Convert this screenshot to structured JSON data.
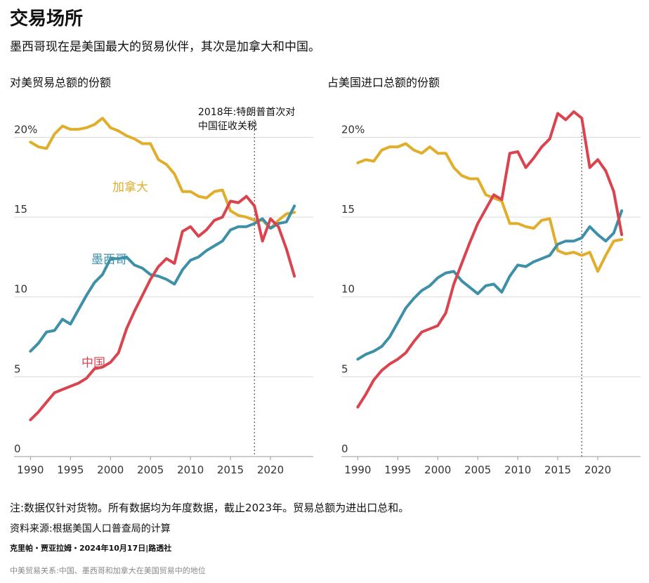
{
  "title": "交易场所",
  "subtitle": "墨西哥现在是美国最大的贸易伙伴，其次是加拿大和中国。",
  "note": "注:数据仅针对货物。所有数据均为年度数据，截止2023年。贸易总额为进出口总和。",
  "source": "资料来源:根据美国人口普查局的计算",
  "credit": "克里帕・贾亚拉姆・2024年10月17日|路透社",
  "caption": "中美贸易关系:中国、墨西哥和加拿大在美国贸易中的地位",
  "colors": {
    "canada": "#e0ae2a",
    "mexico": "#3e90a8",
    "china": "#d9444f",
    "grid": "#d9d9d9",
    "axis": "#999999"
  },
  "chart_data": [
    {
      "type": "line",
      "title": "对美贸易总额的份额",
      "annotation": "2018年:特朗普首次对中国征收关税",
      "annotation_year": 2018,
      "x_ticks": [
        "1990",
        "1995",
        "2000",
        "2005",
        "2010",
        "2015",
        "2020"
      ],
      "y_ticks": [
        "0",
        "5",
        "10",
        "15",
        "20%"
      ],
      "ylim": [
        0,
        22
      ],
      "xlim": [
        1989,
        2025
      ],
      "x": [
        1990,
        1991,
        1992,
        1993,
        1994,
        1995,
        1996,
        1997,
        1998,
        1999,
        2000,
        2001,
        2002,
        2003,
        2004,
        2005,
        2006,
        2007,
        2008,
        2009,
        2010,
        2011,
        2012,
        2013,
        2014,
        2015,
        2016,
        2017,
        2018,
        2019,
        2020,
        2021,
        2022,
        2023
      ],
      "series": [
        {
          "name": "加拿大",
          "key": "canada",
          "values": [
            19.7,
            19.4,
            19.3,
            20.2,
            20.7,
            20.5,
            20.5,
            20.6,
            20.8,
            21.2,
            20.6,
            20.4,
            20.1,
            19.9,
            19.6,
            19.6,
            18.6,
            18.3,
            17.7,
            16.6,
            16.6,
            16.3,
            16.2,
            16.6,
            16.7,
            15.4,
            15.1,
            15.0,
            14.8,
            14.8,
            14.3,
            14.8,
            15.2,
            15.3
          ]
        },
        {
          "name": "墨西哥",
          "key": "mexico",
          "values": [
            6.6,
            7.1,
            7.8,
            7.9,
            8.6,
            8.3,
            9.2,
            10.1,
            10.9,
            11.4,
            12.4,
            12.4,
            12.5,
            12.0,
            11.8,
            11.4,
            11.3,
            11.1,
            10.8,
            11.7,
            12.3,
            12.5,
            12.9,
            13.2,
            13.5,
            14.2,
            14.4,
            14.4,
            14.6,
            14.9,
            14.3,
            14.6,
            14.7,
            15.7
          ]
        },
        {
          "name": "中国",
          "key": "china",
          "values": [
            2.3,
            2.8,
            3.4,
            4.0,
            4.2,
            4.4,
            4.6,
            4.9,
            5.5,
            5.6,
            5.9,
            6.5,
            8.0,
            9.1,
            10.1,
            11.1,
            11.9,
            12.4,
            12.1,
            14.1,
            14.4,
            13.8,
            14.2,
            14.8,
            15.0,
            16.0,
            15.9,
            16.3,
            15.7,
            13.5,
            14.9,
            14.4,
            13.0,
            11.3
          ]
        }
      ]
    },
    {
      "type": "line",
      "title": "占美国进口总额的份额",
      "annotation_year": 2018,
      "x_ticks": [
        "1990",
        "1995",
        "2000",
        "2005",
        "2010",
        "2015",
        "2020"
      ],
      "y_ticks": [
        "0",
        "5",
        "10",
        "15",
        "20%"
      ],
      "ylim": [
        0,
        22
      ],
      "xlim": [
        1989,
        2025
      ],
      "x": [
        1990,
        1991,
        1992,
        1993,
        1994,
        1995,
        1996,
        1997,
        1998,
        1999,
        2000,
        2001,
        2002,
        2003,
        2004,
        2005,
        2006,
        2007,
        2008,
        2009,
        2010,
        2011,
        2012,
        2013,
        2014,
        2015,
        2016,
        2017,
        2018,
        2019,
        2020,
        2021,
        2022,
        2023
      ],
      "series": [
        {
          "name": "加拿大",
          "key": "canada",
          "values": [
            18.4,
            18.6,
            18.5,
            19.2,
            19.4,
            19.4,
            19.6,
            19.2,
            19.0,
            19.4,
            19.0,
            19.0,
            18.1,
            17.6,
            17.4,
            17.4,
            16.4,
            16.2,
            16.0,
            14.6,
            14.6,
            14.4,
            14.3,
            14.8,
            14.9,
            12.9,
            12.7,
            12.8,
            12.6,
            12.8,
            11.6,
            12.6,
            13.5,
            13.6
          ]
        },
        {
          "name": "墨西哥",
          "key": "mexico",
          "values": [
            6.1,
            6.4,
            6.6,
            6.9,
            7.5,
            8.4,
            9.3,
            9.9,
            10.4,
            10.7,
            11.2,
            11.5,
            11.6,
            11.0,
            10.6,
            10.2,
            10.7,
            10.8,
            10.3,
            11.3,
            12.0,
            11.9,
            12.2,
            12.4,
            12.6,
            13.3,
            13.5,
            13.5,
            13.7,
            14.4,
            13.9,
            13.5,
            14.0,
            15.4
          ]
        },
        {
          "name": "中国",
          "key": "china",
          "values": [
            3.1,
            3.9,
            4.8,
            5.4,
            5.8,
            6.1,
            6.5,
            7.2,
            7.8,
            8.0,
            8.2,
            9.0,
            10.8,
            12.1,
            13.4,
            14.6,
            15.5,
            16.4,
            16.1,
            19.0,
            19.1,
            18.1,
            18.7,
            19.4,
            19.9,
            21.5,
            21.1,
            21.6,
            21.2,
            18.1,
            18.6,
            17.9,
            16.6,
            13.9
          ]
        }
      ]
    }
  ],
  "inline_labels": {
    "canada": "加拿大",
    "mexico": "墨西哥",
    "china": "中国"
  }
}
